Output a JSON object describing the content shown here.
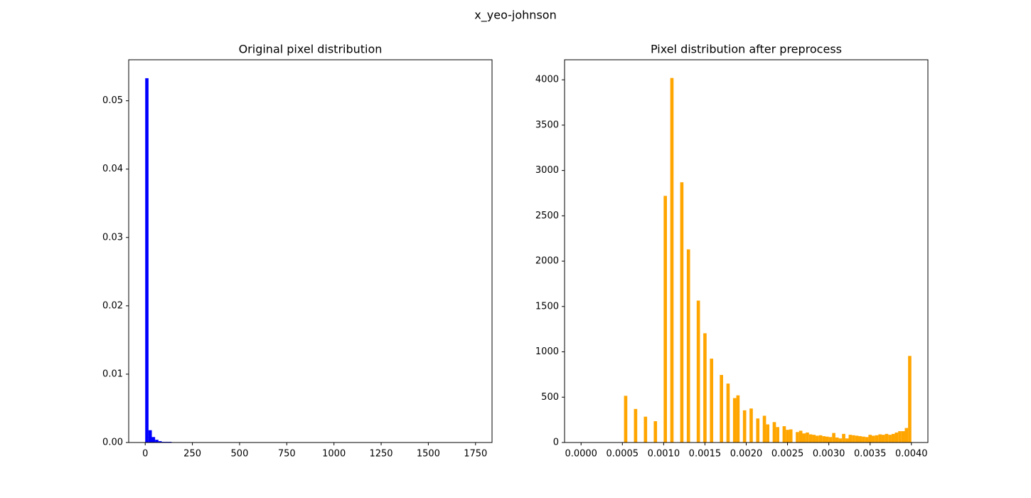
{
  "title": "x_yeo-johnson",
  "chart_data": [
    {
      "type": "histogram",
      "title": "Original pixel distribution",
      "color": "#0000ff",
      "bins": [
        0,
        17.5,
        35,
        52.5,
        70,
        87.5,
        105,
        122.5,
        140,
        157.5,
        175,
        192.5,
        210,
        227.5,
        245,
        262.5,
        280,
        297.5,
        315,
        332.5,
        350,
        367.5,
        385,
        402.5,
        420,
        437.5,
        455,
        472.5,
        490,
        507.5,
        525,
        542.5,
        560,
        577.5,
        595,
        612.5,
        630,
        647.5,
        665,
        682.5,
        700,
        717.5,
        735,
        752.5,
        770,
        787.5,
        805,
        822.5,
        840,
        857.5,
        875,
        892.5,
        910,
        927.5,
        945,
        962.5,
        980,
        997.5,
        1015,
        1032.5,
        1050,
        1067.5,
        1085,
        1102.5,
        1120,
        1137.5,
        1155,
        1172.5,
        1190,
        1207.5,
        1225,
        1242.5,
        1260,
        1277.5,
        1295,
        1312.5,
        1330,
        1347.5,
        1365,
        1382.5,
        1400,
        1417.5,
        1435,
        1452.5,
        1470,
        1487.5,
        1505,
        1522.5,
        1540,
        1557.5,
        1575,
        1592.5,
        1610,
        1627.5,
        1645,
        1662.5,
        1680,
        1697.5,
        1715,
        1732.5,
        1750
      ],
      "values": [
        0.0533,
        0.0018,
        0.0008,
        0.0004,
        0.0002,
        0.0001,
        0.0001,
        0.0001,
        5e-05,
        0,
        0,
        0,
        0,
        0,
        0,
        0,
        0,
        0,
        0,
        0,
        0,
        0,
        0,
        0,
        0,
        0,
        0,
        0,
        0,
        0,
        0,
        0,
        0,
        0,
        0,
        0,
        0,
        0,
        0,
        0,
        0,
        0,
        0,
        0,
        0,
        0,
        0,
        0,
        0,
        0,
        0,
        0,
        0,
        0,
        0,
        0,
        0,
        0,
        0,
        0,
        0,
        0,
        0,
        0,
        0,
        0,
        0,
        0,
        0,
        0,
        0,
        0,
        0,
        0,
        0,
        0,
        0,
        0,
        0,
        0,
        0,
        0,
        0,
        0,
        0,
        0,
        0,
        0,
        0,
        0,
        0,
        0,
        0,
        0,
        0,
        0,
        0,
        0,
        0,
        0
      ],
      "xlim": [
        -87.5,
        1837.5
      ],
      "xticks": [
        0,
        250,
        500,
        750,
        1000,
        1250,
        1500,
        1750
      ],
      "ylim": [
        0,
        0.056
      ],
      "yticks": [
        {
          "value": 0,
          "label": "0.00"
        },
        {
          "value": 0.01,
          "label": "0.01"
        },
        {
          "value": 0.02,
          "label": "0.02"
        },
        {
          "value": 0.03,
          "label": "0.03"
        },
        {
          "value": 0.04,
          "label": "0.04"
        },
        {
          "value": 0.05,
          "label": "0.05"
        }
      ]
    },
    {
      "type": "histogram",
      "title": "Pixel distribution after preprocess",
      "color": "#ffa500",
      "bins": [
        0,
        4e-05,
        8e-05,
        0.00012,
        0.00016,
        0.0002,
        0.00024,
        0.00028,
        0.00032,
        0.00036,
        0.0004,
        0.00044,
        0.00048,
        0.00052,
        0.00056,
        0.0006,
        0.00064,
        0.00068,
        0.00072,
        0.00076,
        0.0008,
        0.00084,
        0.00088,
        0.00092,
        0.00096,
        0.001,
        0.00104,
        0.00108,
        0.00112,
        0.00116,
        0.0012,
        0.00124,
        0.00128,
        0.00132,
        0.00136,
        0.0014,
        0.00144,
        0.00148,
        0.00152,
        0.00156,
        0.0016,
        0.00164,
        0.00168,
        0.00172,
        0.00176,
        0.0018,
        0.00184,
        0.00188,
        0.00192,
        0.00196,
        0.002,
        0.00204,
        0.00208,
        0.00212,
        0.00216,
        0.0022,
        0.00224,
        0.00228,
        0.00232,
        0.00236,
        0.0024,
        0.00244,
        0.00248,
        0.00252,
        0.00256,
        0.0026,
        0.00264,
        0.00268,
        0.00272,
        0.00276,
        0.0028,
        0.00284,
        0.00288,
        0.00292,
        0.00296,
        0.003,
        0.00304,
        0.00308,
        0.00312,
        0.00316,
        0.0032,
        0.00324,
        0.00328,
        0.00332,
        0.00336,
        0.0034,
        0.00344,
        0.00348,
        0.00352,
        0.00356,
        0.0036,
        0.00364,
        0.00368,
        0.00372,
        0.00376,
        0.0038,
        0.00384,
        0.00388,
        0.00392,
        0.00396,
        0.004
      ],
      "values": [
        0,
        0,
        0,
        0,
        0,
        0,
        0,
        0,
        0,
        0,
        0,
        0,
        0,
        515,
        0,
        0,
        370,
        0,
        0,
        285,
        0,
        0,
        235,
        0,
        0,
        2720,
        0,
        4020,
        0,
        0,
        2870,
        0,
        2130,
        0,
        0,
        1565,
        0,
        1205,
        0,
        925,
        0,
        0,
        745,
        0,
        650,
        0,
        490,
        520,
        0,
        355,
        0,
        375,
        0,
        265,
        0,
        295,
        200,
        0,
        225,
        170,
        0,
        180,
        140,
        145,
        0,
        115,
        130,
        100,
        110,
        90,
        85,
        75,
        80,
        70,
        65,
        60,
        105,
        55,
        45,
        95,
        45,
        85,
        80,
        75,
        70,
        65,
        60,
        85,
        75,
        80,
        90,
        85,
        95,
        85,
        95,
        110,
        125,
        125,
        160,
        955
      ],
      "xlim": [
        -0.0002,
        0.0042
      ],
      "xticks": [
        {
          "value": 0,
          "label": "0.0000"
        },
        {
          "value": 0.0005,
          "label": "0.0005"
        },
        {
          "value": 0.001,
          "label": "0.0010"
        },
        {
          "value": 0.0015,
          "label": "0.0015"
        },
        {
          "value": 0.002,
          "label": "0.0020"
        },
        {
          "value": 0.0025,
          "label": "0.0025"
        },
        {
          "value": 0.003,
          "label": "0.0030"
        },
        {
          "value": 0.0035,
          "label": "0.0035"
        },
        {
          "value": 0.004,
          "label": "0.0040"
        }
      ],
      "ylim": [
        0,
        4221
      ],
      "yticks": [
        0,
        500,
        1000,
        1500,
        2000,
        2500,
        3000,
        3500,
        4000
      ]
    }
  ]
}
